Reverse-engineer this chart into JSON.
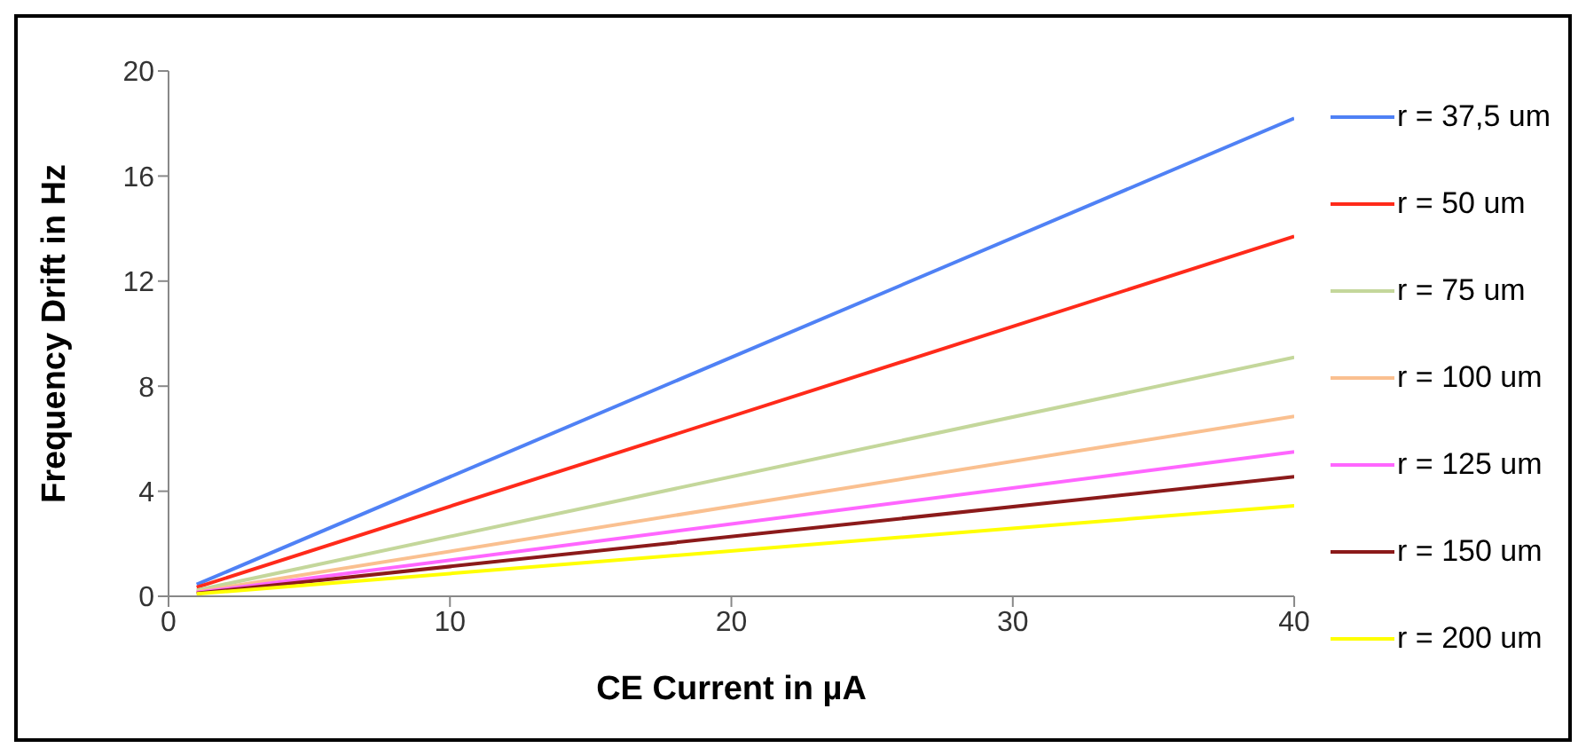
{
  "chart_data": {
    "type": "line",
    "xlabel": "CE Current in µA",
    "ylabel": "Frequency Drift in Hz",
    "x": [
      1,
      40
    ],
    "xlim": [
      0,
      40
    ],
    "xticks": [
      0,
      10,
      20,
      30,
      40
    ],
    "ylim": [
      0,
      20
    ],
    "yticks": [
      0,
      4,
      8,
      12,
      16,
      20
    ],
    "grid": false,
    "legend": "right",
    "marker": "none",
    "line_style": "solid",
    "series": [
      {
        "name": "r = 37,5 um",
        "color": "#4f81f5",
        "values": [
          0.45,
          18.2
        ]
      },
      {
        "name": "r = 50 um",
        "color": "#ff2a1a",
        "values": [
          0.34,
          13.7
        ]
      },
      {
        "name": "r = 75 um",
        "color": "#c4d79b",
        "values": [
          0.23,
          9.1
        ]
      },
      {
        "name": "r = 100 um",
        "color": "#fac090",
        "values": [
          0.17,
          6.85
        ]
      },
      {
        "name": "r = 125 um",
        "color": "#ff66ff",
        "values": [
          0.14,
          5.5
        ]
      },
      {
        "name": "r = 150 um",
        "color": "#8b1a1a",
        "values": [
          0.11,
          4.55
        ]
      },
      {
        "name": "r = 200 um",
        "color": "#ffff00",
        "values": [
          0.09,
          3.45
        ]
      }
    ]
  }
}
